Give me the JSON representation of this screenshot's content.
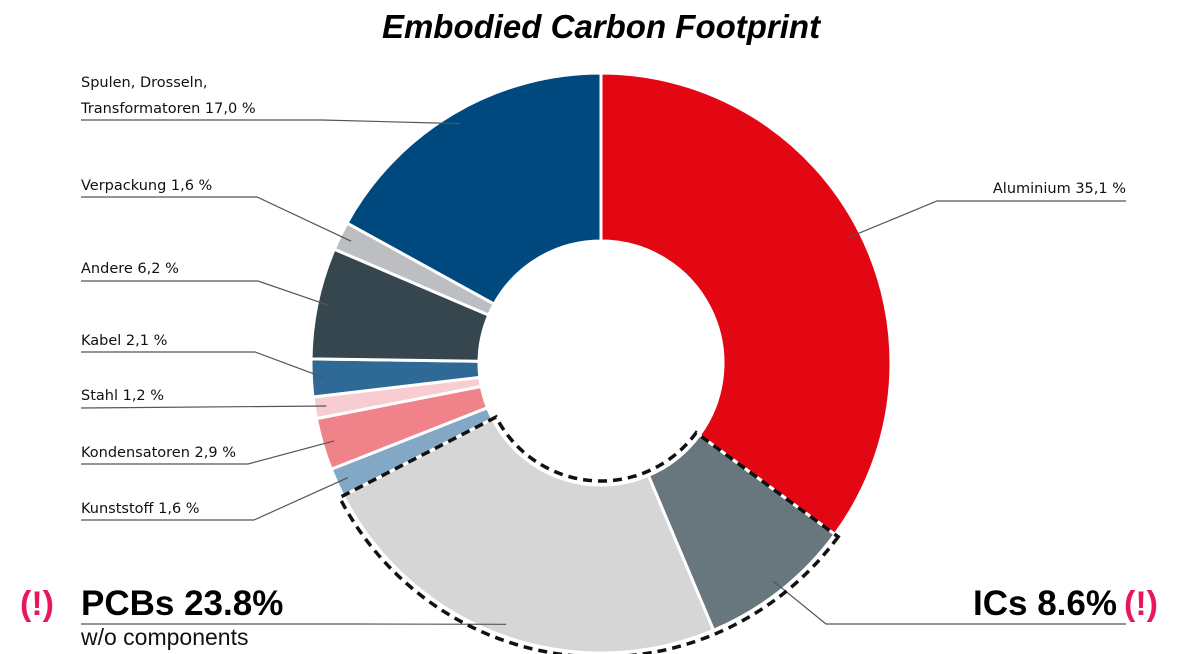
{
  "chart_data": {
    "type": "pie",
    "donut": true,
    "title": "Embodied Carbon Footprint",
    "slices": [
      {
        "label": "Aluminium 35,1 %",
        "value": 35.1,
        "color": "#e30613"
      },
      {
        "label": "ICs 8.6%",
        "value": 8.6,
        "color": "#68767e"
      },
      {
        "label": "PCBs 23.8%",
        "value": 23.8,
        "color": "#d6d6d6"
      },
      {
        "label": "Kunststoff 1,6 %",
        "value": 1.6,
        "color": "#82a8c6"
      },
      {
        "label": "Kondensatoren 2,9 %",
        "value": 2.9,
        "color": "#f0828a"
      },
      {
        "label": "Stahl 1,2 %",
        "value": 1.2,
        "color": "#f8cdd2"
      },
      {
        "label": "Kabel 2,1 %",
        "value": 2.1,
        "color": "#2f6a97"
      },
      {
        "label": "Andere 6,2 %",
        "value": 6.2,
        "color": "#36464f"
      },
      {
        "label": "Verpackung 1,6 %",
        "value": 1.6,
        "color": "#bcbec2"
      },
      {
        "label": "Spulen, Drosseln, Transformatoren 17,0 %",
        "value": 17.0,
        "color": "#00497e"
      }
    ],
    "label_lines": {
      "spulen": [
        "Spulen, Drosseln,",
        "Transformatoren 17,0 %"
      ]
    },
    "highlight": {
      "marker": "(!)",
      "pcbs_sub": "w/o components",
      "dashed_outline": [
        "ICs 8.6%",
        "PCBs 23.8%"
      ]
    }
  }
}
